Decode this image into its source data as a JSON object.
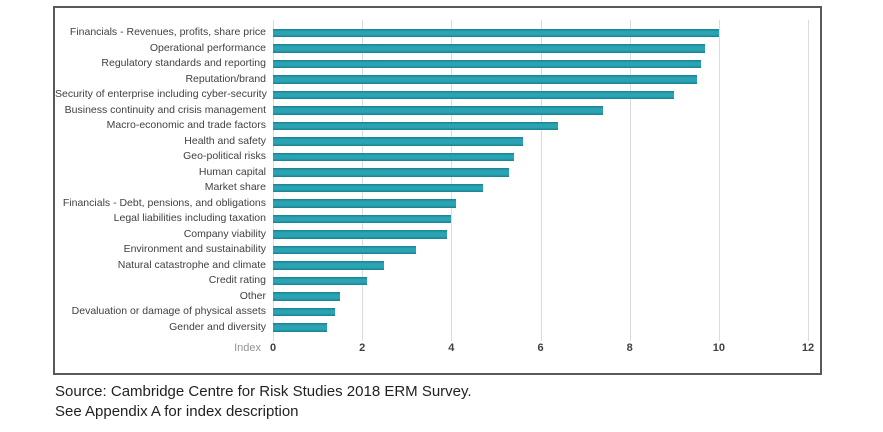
{
  "chart_data": {
    "type": "bar",
    "orientation": "horizontal",
    "title": "",
    "xlabel": "Index",
    "xlim": [
      0,
      12
    ],
    "xticks": [
      0,
      2,
      4,
      6,
      8,
      10,
      12
    ],
    "grid": true,
    "bar_color": "#1F96A5",
    "gridline_color": "#DBDBDB",
    "categories": [
      "Financials - Revenues, profits, share price",
      "Operational performance",
      "Regulatory standards and reporting",
      "Reputation/brand",
      "Security of enterprise including cyber-security",
      "Business continuity and crisis management",
      "Macro-economic and trade factors",
      "Health and safety",
      "Geo-political risks",
      "Human capital",
      "Market share",
      "Financials - Debt, pensions, and obligations",
      "Legal liabilities including taxation",
      "Company viability",
      "Environment and sustainability",
      "Natural catastrophe and climate",
      "Credit rating",
      "Other",
      "Devaluation or damage of physical assets",
      "Gender and diversity"
    ],
    "values": [
      10.0,
      9.7,
      9.6,
      9.5,
      9.0,
      7.4,
      6.4,
      5.6,
      5.4,
      5.3,
      4.7,
      4.1,
      4.0,
      3.9,
      3.2,
      2.5,
      2.1,
      1.5,
      1.4,
      1.2
    ]
  },
  "figure": {
    "border_color": "#58595B"
  },
  "caption": {
    "line1": "Source: Cambridge Centre for Risk Studies 2018 ERM Survey.",
    "line2": "See Appendix A for index description"
  }
}
